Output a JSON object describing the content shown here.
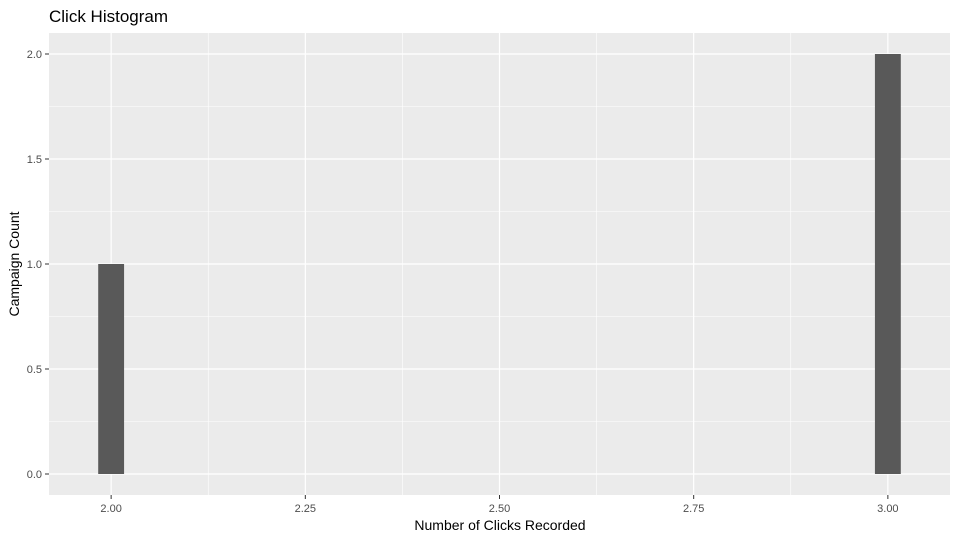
{
  "chart_data": {
    "type": "bar",
    "title": "Click Histogram",
    "xlabel": "Number of Clicks Recorded",
    "ylabel": "Campaign Count",
    "x": [
      2.0,
      3.0
    ],
    "values": [
      1,
      2
    ],
    "bin_width": 0.0333,
    "xlim": [
      1.92,
      3.08
    ],
    "ylim": [
      -0.1,
      2.1
    ],
    "x_ticks": [
      2.0,
      2.25,
      2.5,
      2.75,
      3.0
    ],
    "x_tick_labels": [
      "2.00",
      "2.25",
      "2.50",
      "2.75",
      "3.00"
    ],
    "y_ticks": [
      0,
      0.5,
      1.0,
      1.5,
      2.0
    ],
    "y_tick_labels": [
      "0.0",
      "0.5",
      "1.0",
      "1.5",
      "2.0"
    ],
    "grid": true,
    "colors": {
      "panel": "#ebebeb",
      "grid": "#ffffff",
      "bar": "#595959"
    }
  }
}
